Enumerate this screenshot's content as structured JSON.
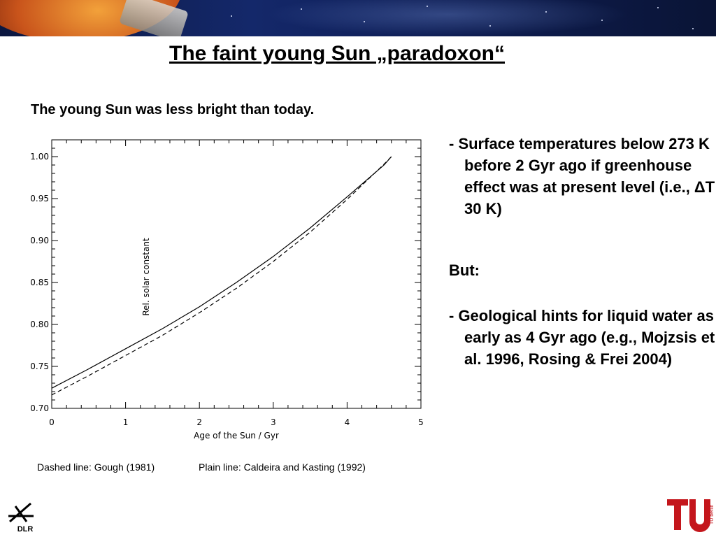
{
  "slide": {
    "title": "The faint young Sun  „paradoxon“",
    "subtitle": "The young Sun was less bright than today.",
    "caption_dashed": "Dashed line: Gough (1981)",
    "caption_plain": "Plain line: Caldeira and Kasting (1992)",
    "bullets": [
      "-  Surface temperatures below 273 K before 2 Gyr ago if greenhouse effect was at present level (i.e., ΔT ~ 30 K)",
      "-  Geological hints for liquid water as early as 4 Gyr ago (e.g.,  Mojzsis et al. 1996, Rosing & Frei 2004)"
    ],
    "but_label": "But:",
    "logo_left_text": "DLR",
    "logo_right_text": "TU berlin"
  },
  "chart_data": {
    "type": "line",
    "xlabel": "Age of the Sun / Gyr",
    "ylabel": "Rel. solar constant",
    "xlim": [
      0,
      5
    ],
    "ylim": [
      0.7,
      1.02
    ],
    "xticks": [
      0,
      1,
      2,
      3,
      4,
      5
    ],
    "yticks": [
      0.7,
      0.75,
      0.8,
      0.85,
      0.9,
      0.95,
      1.0
    ],
    "ytick_labels": [
      "0.70",
      "0.75",
      "0.80",
      "0.85",
      "0.90",
      "0.95",
      "1.00"
    ],
    "grid": false,
    "series": [
      {
        "name": "Plain line: Caldeira and Kasting (1992)",
        "style": "solid",
        "x": [
          0,
          0.5,
          1,
          1.5,
          2,
          2.5,
          3,
          3.5,
          4,
          4.5,
          4.6
        ],
        "y": [
          0.724,
          0.747,
          0.771,
          0.795,
          0.821,
          0.85,
          0.881,
          0.915,
          0.952,
          0.99,
          1.0
        ]
      },
      {
        "name": "Dashed line: Gough (1981)",
        "style": "dashed",
        "x": [
          0,
          0.5,
          1,
          1.5,
          2,
          2.5,
          3,
          3.5,
          4,
          4.5,
          4.6
        ],
        "y": [
          0.716,
          0.739,
          0.763,
          0.787,
          0.814,
          0.843,
          0.875,
          0.91,
          0.949,
          0.991,
          1.0
        ]
      }
    ]
  }
}
